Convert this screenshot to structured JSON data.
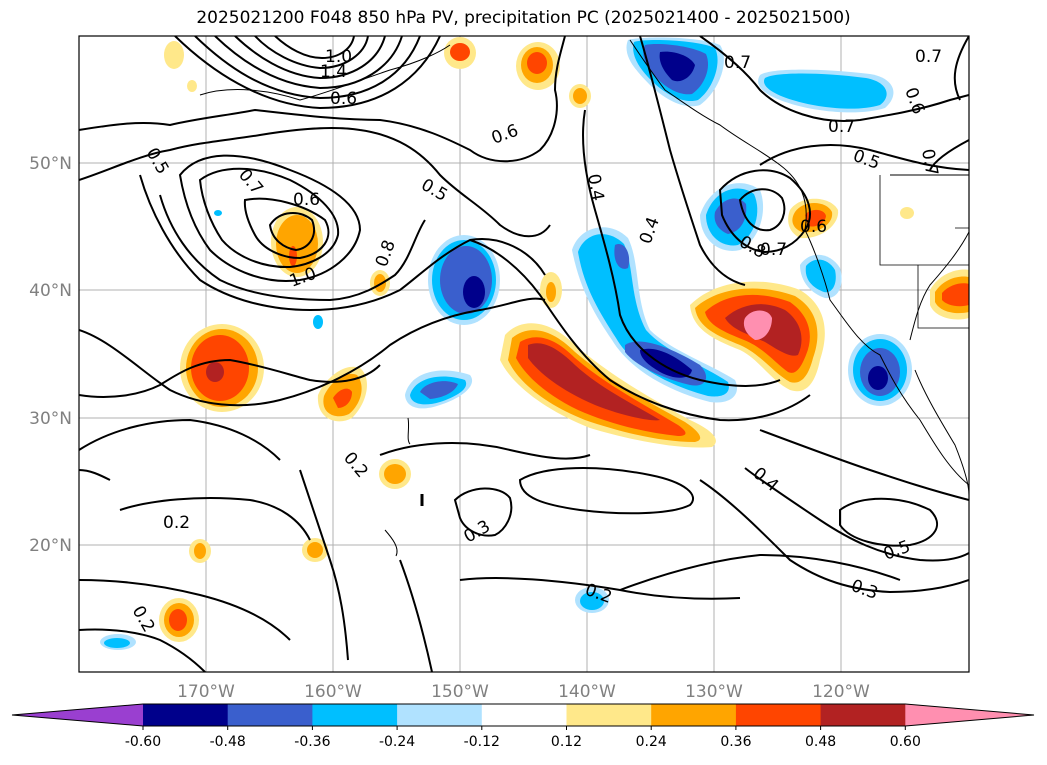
{
  "title": "2025021200 F048 850 hPa PV, precipitation PC (2025021400 - 2025021500)",
  "lat_labels": [
    "50°N",
    "40°N",
    "30°N",
    "20°N"
  ],
  "lon_labels": [
    "170°W",
    "160°W",
    "150°W",
    "140°W",
    "130°W",
    "120°W"
  ],
  "colorbar": {
    "ticks": [
      "-0.60",
      "-0.48",
      "-0.36",
      "-0.24",
      "-0.12",
      "0.12",
      "0.24",
      "0.36",
      "0.48",
      "0.60"
    ],
    "colors": [
      "#9a3fd0",
      "#00008b",
      "#3a5fcd",
      "#00bfff",
      "#b0e2ff",
      "#ffffff",
      "#ffe88a",
      "#ffa500",
      "#ff4500",
      "#b22222",
      "#ff8fb0"
    ]
  },
  "contour_labels": [
    "1.4",
    "1.0",
    "0.6",
    "0.5",
    "0.7",
    "0.6",
    "0.8",
    "1.0",
    "0.6",
    "0.5",
    "0.4",
    "0.4",
    "0.8",
    "0.7",
    "0.6",
    "0.7",
    "0.7",
    "0.6",
    "0.7",
    "0.5",
    "0.4",
    "0.2",
    "0.2",
    "0.3",
    "0.2",
    "0.5",
    "0.3",
    "0.2",
    "0.7"
  ]
}
